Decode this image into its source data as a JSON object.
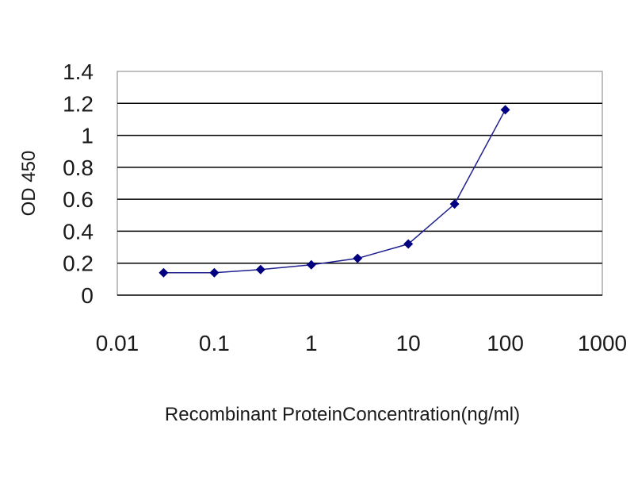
{
  "chart_data": {
    "type": "line",
    "xscale": "log",
    "xlabel": "Recombinant ProteinConcentration(ng/ml)",
    "ylabel": "OD 450",
    "xlim": [
      0.01,
      1000
    ],
    "ylim": [
      0,
      1.4
    ],
    "xticks": [
      0.01,
      0.1,
      1,
      10,
      100,
      1000
    ],
    "xtick_labels": [
      "0.01",
      "0.1",
      "1",
      "10",
      "100",
      "1000"
    ],
    "yticks": [
      0,
      0.2,
      0.4,
      0.6,
      0.8,
      1,
      1.2,
      1.4
    ],
    "ytick_labels": [
      "0",
      "0.2",
      "0.4",
      "0.6",
      "0.8",
      "1",
      "1.2",
      "1.4"
    ],
    "grid": "horizontal",
    "series": [
      {
        "x": [
          0.03,
          0.1,
          0.3,
          1,
          3,
          10,
          30,
          100
        ],
        "y": [
          0.14,
          0.14,
          0.16,
          0.19,
          0.23,
          0.32,
          0.57,
          1.16
        ]
      }
    ],
    "colors": {
      "line": "#1f1f8f",
      "marker": "#000080",
      "grid": "#000000",
      "plot_background": "#ffffff",
      "plot_border": "#808080"
    }
  }
}
